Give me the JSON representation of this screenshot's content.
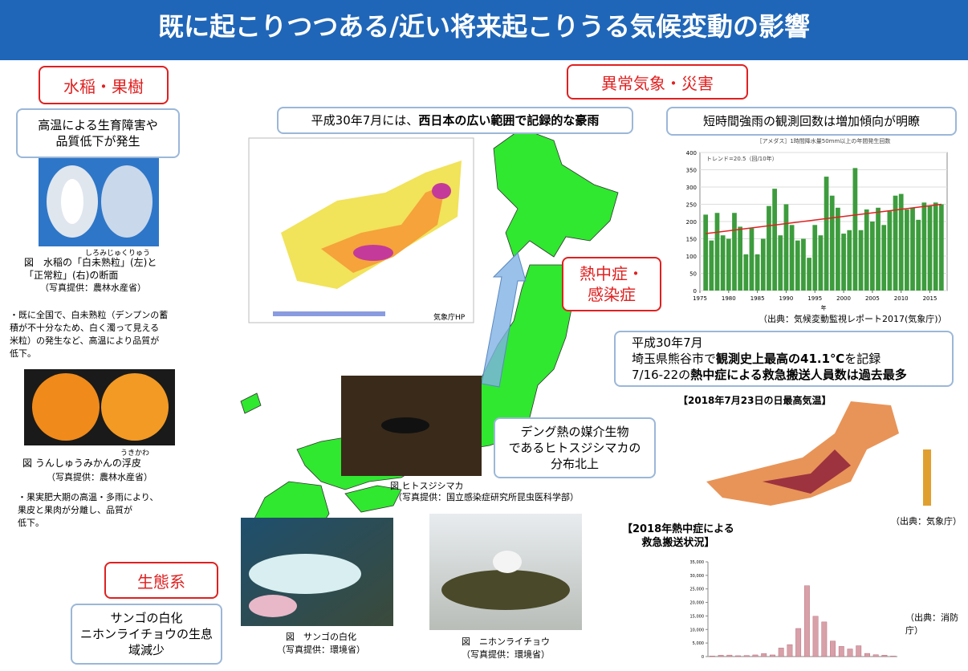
{
  "header": {
    "title": "既に起こりつつある/近い将来起こりうる気候変動の影響"
  },
  "agriculture": {
    "label": "水稲・果樹",
    "summary": [
      "高温による生育障害や",
      "品質低下が発生"
    ],
    "rice": {
      "ruby": "しろみじゅくりゅう",
      "caption": [
        "図　水稲の「白未熟粒」(左)と",
        "「正常粒」(右)の断面"
      ],
      "credit": "（写真提供：農林水産省）",
      "note": [
        "・既に全国で、白未熟粒（デンプンの蓄",
        "積が不十分なため、白く濁って見える",
        "米粒）の発生など、高温により品質が",
        "低下。"
      ]
    },
    "citrus": {
      "ruby": "うきかわ",
      "caption": "図 うんしゅうみかんの浮皮",
      "credit": "（写真提供：農林水産省）",
      "note": [
        "・果実肥大期の高温・多雨により、",
        "果皮と果肉が分離し、品質が",
        "低下。"
      ]
    }
  },
  "ecosystem": {
    "label": "生態系",
    "summary": [
      "サンゴの白化",
      "ニホンライチョウの生息",
      "域減少"
    ],
    "coral": {
      "caption": "図　サンゴの白化",
      "credit": "（写真提供：環境省）"
    },
    "ptarmigan": {
      "caption": "図　ニホンライチョウ",
      "credit": "（写真提供：環境省）"
    }
  },
  "disaster": {
    "label": "異常気象・災害",
    "rain_event": [
      "平成30年7月には、",
      "西日本の広い範囲で記録的な豪雨"
    ],
    "map_credit": "気象庁HP",
    "rain_trend": "短時間強雨の観測回数は増加傾向が明瞭",
    "rain_source": "（出典：気候変動監視レポート2017(気象庁)）"
  },
  "heat": {
    "label": [
      "熱中症・",
      "感染症"
    ],
    "record": {
      "line1": "平成30年7月",
      "line2": [
        "埼玉県熊谷市で",
        "観測史上最高の41.1℃",
        "を記録"
      ],
      "line3": [
        "7/16-22の",
        "熱中症による救急搬送人員数は過去最多"
      ]
    },
    "mosquito": {
      "caption": "図 ヒトスジシマカ",
      "credit": "（写真提供：国立感染症研究所昆虫医科学部）",
      "box": [
        "デング熱の媒介生物",
        "であるヒトスジシマカの",
        "分布北上"
      ]
    },
    "temp_map_title": "【2018年7月23日の日最高気温】",
    "temp_source": "（出典：気象庁）",
    "transport_title": [
      "【2018年熱中症による",
      "救急搬送状況】"
    ],
    "transport_source": "（出典：消防庁）"
  },
  "chart_data": [
    {
      "type": "bar",
      "title": "［アメダス］1時間降水量50mm以上の年間発生回数",
      "legend": "トレンド=20.5（回/10年）",
      "xlabel": "年",
      "x": [
        1976,
        1977,
        1978,
        1979,
        1980,
        1981,
        1982,
        1983,
        1984,
        1985,
        1986,
        1987,
        1988,
        1989,
        1990,
        1991,
        1992,
        1993,
        1994,
        1995,
        1996,
        1997,
        1998,
        1999,
        2000,
        2001,
        2002,
        2003,
        2004,
        2005,
        2006,
        2007,
        2008,
        2009,
        2010,
        2011,
        2012,
        2013,
        2014,
        2015,
        2016,
        2017
      ],
      "values": [
        220,
        145,
        225,
        160,
        150,
        225,
        185,
        105,
        180,
        105,
        150,
        245,
        295,
        160,
        250,
        190,
        145,
        150,
        95,
        190,
        160,
        330,
        275,
        240,
        165,
        175,
        355,
        175,
        235,
        200,
        240,
        190,
        230,
        275,
        280,
        235,
        240,
        205,
        255,
        245,
        255,
        250
      ],
      "color": "#3d9c3d",
      "trend": {
        "start": 165,
        "end": 250,
        "color": "#e02020"
      },
      "xlim": [
        1975,
        2018
      ],
      "xticks": [
        1975,
        1980,
        1985,
        1990,
        1995,
        2000,
        2005,
        2010,
        2015
      ],
      "ylim": [
        0,
        400
      ],
      "yticks": [
        0,
        50,
        100,
        150,
        200,
        250,
        300,
        350,
        400
      ],
      "grid": true
    },
    {
      "type": "bar",
      "color": "#d8a0a8",
      "values": [
        201,
        486,
        558,
        322,
        410,
        613,
        1113,
        612,
        3153,
        4426,
        10387,
        26191,
        14893,
        12798,
        5745,
        3755,
        2813,
        4000,
        1170,
        692,
        520,
        187
      ],
      "ylim": [
        0,
        35000
      ],
      "yticks": [
        0,
        {
          "value": 5000,
          "label": "5,000"
        },
        {
          "value": 10000,
          "label": "10,000"
        },
        {
          "value": 15000,
          "label": "15,000"
        },
        {
          "value": 20000,
          "label": "20,000"
        },
        {
          "value": 25000,
          "label": "25,000"
        },
        {
          "value": 30000,
          "label": "30,000"
        },
        {
          "value": 35000,
          "label": "35,000"
        }
      ],
      "grid": false
    }
  ]
}
